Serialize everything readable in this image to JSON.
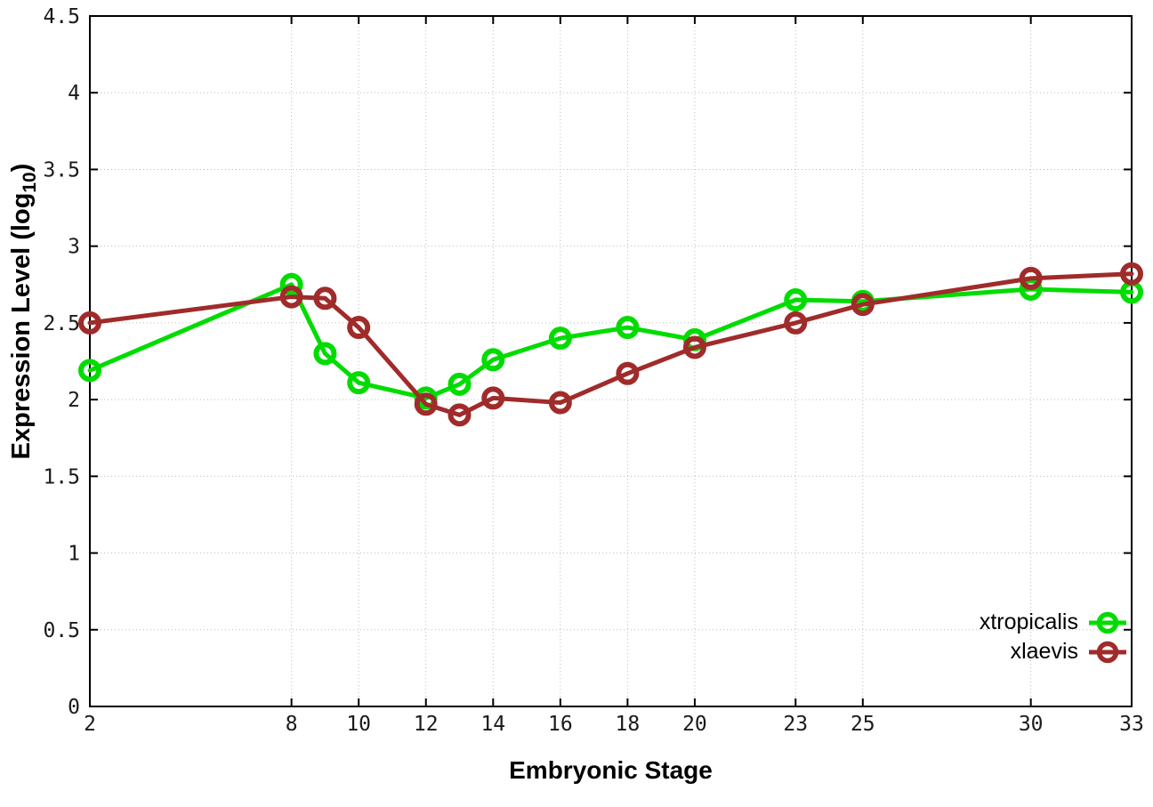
{
  "chart_data": {
    "type": "line",
    "title": "",
    "xlabel": "Embryonic Stage",
    "ylabel": "Expression Level (log10)",
    "ylabel_parts": {
      "main": "Expression Level (log",
      "sub": "10",
      "close": ")"
    },
    "x": [
      2,
      8,
      9,
      10,
      12,
      13,
      14,
      16,
      18,
      20,
      23,
      25,
      30,
      33
    ],
    "series": [
      {
        "name": "xtropicalis",
        "color": "#00dc00",
        "values": [
          2.19,
          2.75,
          2.3,
          2.11,
          2.01,
          2.1,
          2.26,
          2.4,
          2.47,
          2.39,
          2.65,
          2.64,
          2.72,
          2.7
        ]
      },
      {
        "name": "xlaevis",
        "color": "#a02b2b",
        "values": [
          2.5,
          2.67,
          2.66,
          2.47,
          1.97,
          1.9,
          2.01,
          1.98,
          2.17,
          2.34,
          2.5,
          2.62,
          2.79,
          2.82
        ]
      }
    ],
    "xticks": [
      2,
      8,
      10,
      12,
      14,
      16,
      18,
      20,
      23,
      25,
      30,
      33
    ],
    "yticks": [
      0,
      0.5,
      1,
      1.5,
      2,
      2.5,
      3,
      3.5,
      4,
      4.5
    ],
    "xlim": [
      2,
      33
    ],
    "ylim": [
      0,
      4.5
    ],
    "grid": true,
    "legend_position": "inside-bottom-right",
    "marker": "open-circle",
    "frame_color": "#000000",
    "grid_color": "#bcbcbc",
    "tick_label_color": "#1a1a1a"
  }
}
